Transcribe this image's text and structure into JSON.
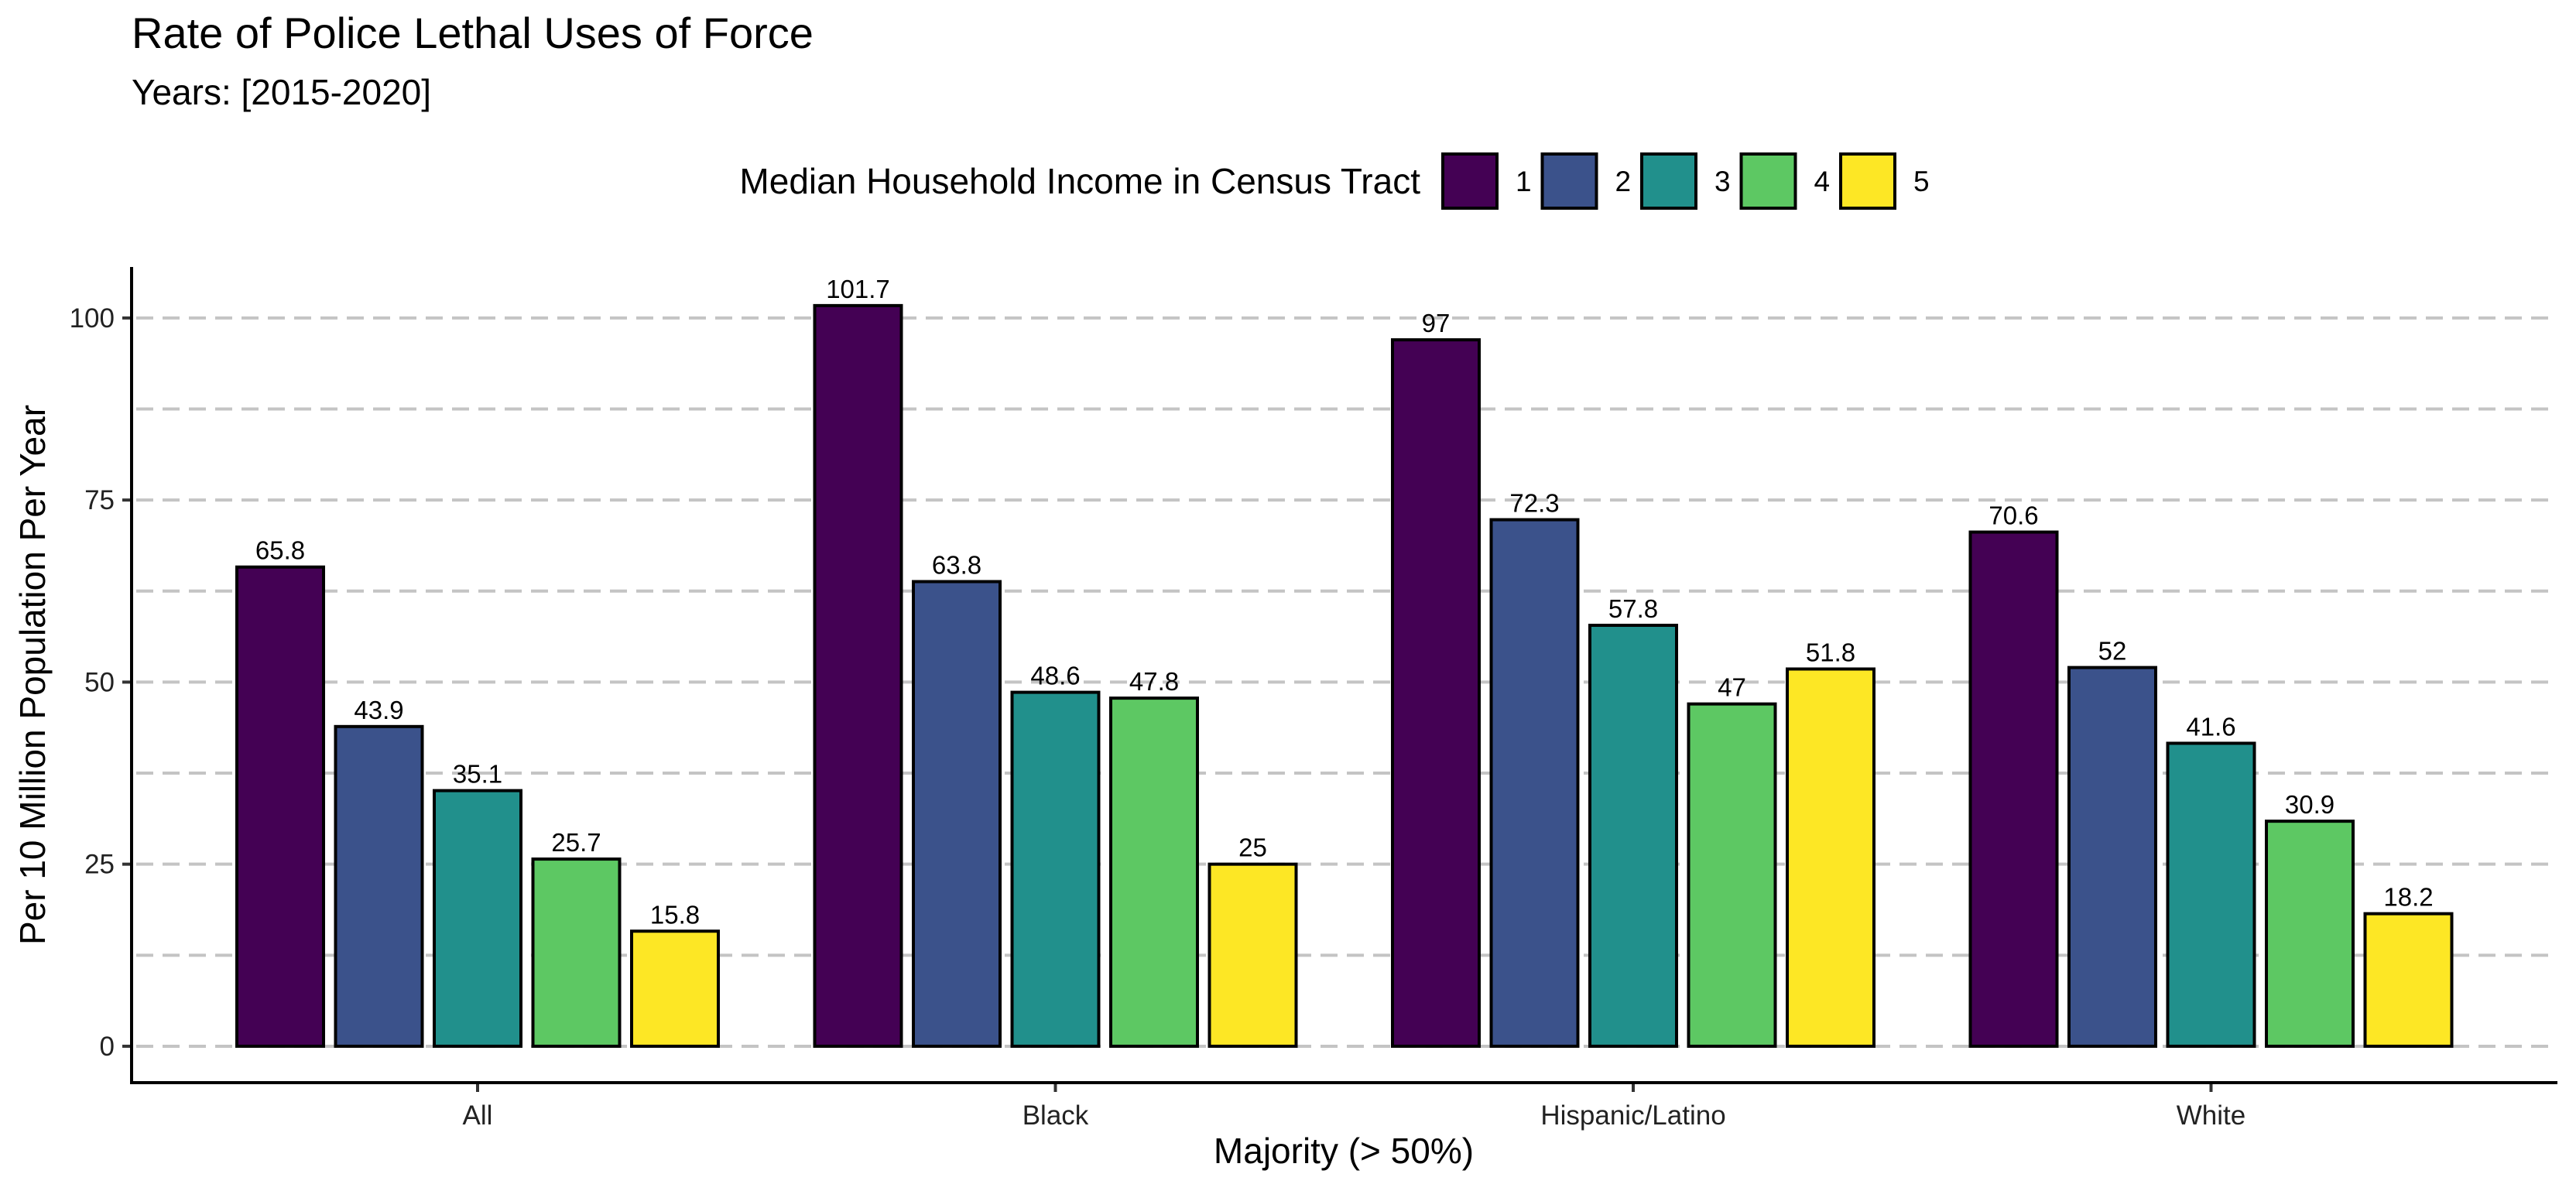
{
  "chart_data": {
    "type": "bar",
    "title": "Rate of Police Lethal Uses of Force",
    "subtitle": "Years: [2015-2020]",
    "xlabel": "Majority (> 50%)",
    "ylabel": "Per 10 Million Population Per Year",
    "ylim": [
      -5,
      107
    ],
    "yticks": [
      0,
      25,
      50,
      75,
      100
    ],
    "ytick_labels": [
      "0",
      "25",
      "50",
      "75",
      "100"
    ],
    "minor_gridlines": [
      12.5,
      37.5,
      62.5,
      87.5
    ],
    "grid": "horizontal dashed",
    "legend_title": "Median Household Income in Census Tract",
    "legend_position": "top",
    "categories": [
      "All",
      "Black",
      "Hispanic/Latino",
      "White"
    ],
    "series": [
      {
        "name": "1",
        "color": "#440154",
        "values": [
          65.8,
          101.7,
          97,
          70.6
        ],
        "labels": [
          "65.8",
          "101.7",
          "97",
          "70.6"
        ]
      },
      {
        "name": "2",
        "color": "#3B528B",
        "values": [
          43.9,
          63.8,
          72.3,
          52
        ],
        "labels": [
          "43.9",
          "63.8",
          "72.3",
          "52"
        ]
      },
      {
        "name": "3",
        "color": "#21908C",
        "values": [
          35.1,
          48.6,
          57.8,
          41.6
        ],
        "labels": [
          "35.1",
          "48.6",
          "57.8",
          "41.6"
        ]
      },
      {
        "name": "4",
        "color": "#5DC863",
        "values": [
          25.7,
          47.8,
          47,
          30.9
        ],
        "labels": [
          "25.7",
          "47.8",
          "47",
          "30.9"
        ]
      },
      {
        "name": "5",
        "color": "#FDE725",
        "values": [
          15.8,
          25,
          51.8,
          18.2
        ],
        "labels": [
          "15.8",
          "25",
          "51.8",
          "18.2"
        ]
      }
    ]
  }
}
